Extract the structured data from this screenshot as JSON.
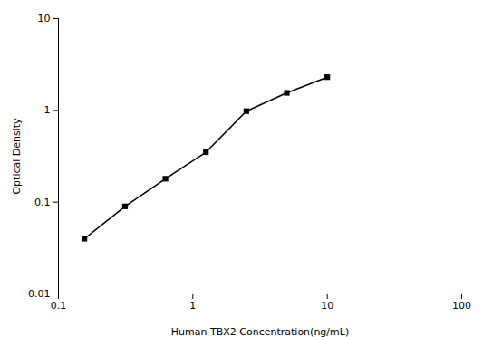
{
  "chart_data": {
    "type": "line",
    "x": [
      0.156,
      0.313,
      0.625,
      1.25,
      2.5,
      5.0,
      10.0
    ],
    "values": [
      0.04,
      0.09,
      0.18,
      0.35,
      0.98,
      1.55,
      2.3
    ],
    "xlabel": "Human TBX2 Concentration(ng/mL)",
    "ylabel": "Optical Density",
    "log": true,
    "marker": "square",
    "xlim": [
      0.1,
      100
    ],
    "ylim": [
      0.01,
      10
    ],
    "xticks": [
      0.1,
      1,
      10,
      100
    ],
    "yticks": [
      0.01,
      0.1,
      1,
      10
    ],
    "grid": false
  }
}
